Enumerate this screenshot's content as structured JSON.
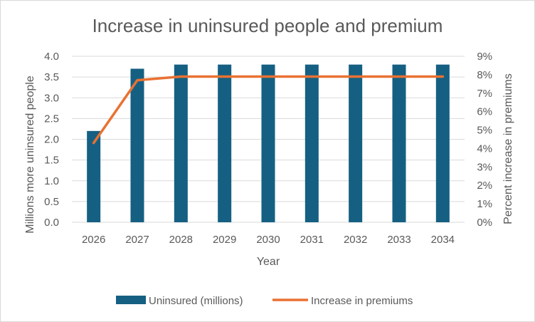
{
  "chart_data": {
    "type": "bar-line-combo",
    "title": "Increase in uninsured people and premium",
    "xlabel": "Year",
    "ylabel_left": "Millions more uninsured people",
    "ylabel_right": "Percent increase in premiums",
    "categories": [
      "2026",
      "2027",
      "2028",
      "2029",
      "2030",
      "2031",
      "2032",
      "2033",
      "2034"
    ],
    "ylim_left": [
      0,
      4.0
    ],
    "yticks_left": [
      "0.0",
      "0.5",
      "1.0",
      "1.5",
      "2.0",
      "2.5",
      "3.0",
      "3.5",
      "4.0"
    ],
    "ylim_right": [
      0,
      9
    ],
    "yticks_right": [
      "0%",
      "1%",
      "2%",
      "3%",
      "4%",
      "5%",
      "6%",
      "7%",
      "8%",
      "9%"
    ],
    "grid": true,
    "legend_position": "bottom",
    "series": [
      {
        "name": "Uninsured (millions)",
        "type": "bar",
        "axis": "left",
        "color": "#156082",
        "values": [
          2.2,
          3.7,
          3.8,
          3.8,
          3.8,
          3.8,
          3.8,
          3.8,
          3.8
        ]
      },
      {
        "name": "Increase in premiums",
        "type": "line",
        "axis": "right",
        "color": "#E97132",
        "values": [
          4.3,
          7.7,
          7.9,
          7.9,
          7.9,
          7.9,
          7.9,
          7.9,
          7.9
        ]
      }
    ]
  }
}
